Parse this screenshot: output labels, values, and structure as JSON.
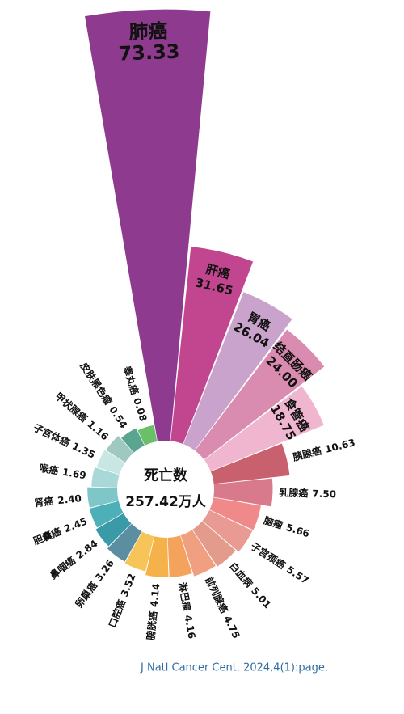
{
  "chart_data": {
    "type": "rose",
    "categories": [
      "肺癌",
      "肝癌",
      "胃癌",
      "结直肠癌",
      "食管癌",
      "胰腺癌",
      "乳腺癌",
      "脑瘤",
      "子宫颈癌",
      "白血病",
      "前列腺癌",
      "淋巴瘤",
      "膀胱癌",
      "口腔癌",
      "卵巢癌",
      "鼻咽癌",
      "胆囊癌",
      "肾癌",
      "喉癌",
      "子宫体癌",
      "甲状腺癌",
      "皮肤黑色瘤",
      "睾丸癌"
    ],
    "values": [
      73.33,
      31.65,
      26.04,
      24.0,
      18.75,
      10.63,
      7.5,
      5.66,
      5.57,
      5.01,
      4.75,
      4.16,
      4.14,
      3.52,
      3.26,
      2.84,
      2.45,
      2.4,
      1.69,
      1.35,
      1.16,
      0.54,
      0.08
    ],
    "value_labels": [
      "73.33",
      "31.65",
      "26.04",
      "24.00",
      "18.75",
      "10.63",
      "7.50",
      "5.66",
      "5.57",
      "5.01",
      "4.75",
      "4.16",
      "4.14",
      "3.52",
      "3.26",
      "2.84",
      "2.45",
      "2.40",
      "1.69",
      "1.35",
      "1.16",
      "0.54",
      "0.08"
    ],
    "colors": [
      "#8e3a8e",
      "#c2468f",
      "#c9a3cb",
      "#d98bb0",
      "#f0b6cf",
      "#c8606e",
      "#d97a8c",
      "#f08a8a",
      "#e89a93",
      "#e39b8c",
      "#f0a080",
      "#f5a25c",
      "#f6b24a",
      "#f7c45a",
      "#5a8ea0",
      "#3a9aa8",
      "#4db0b8",
      "#7ec6c8",
      "#a9d8d8",
      "#c8e6e4",
      "#9ec8c0",
      "#5aa590",
      "#6abf69"
    ],
    "center_label": "死亡数",
    "total": 257.42,
    "total_unit": "万人",
    "source": "J Natl Cancer Cent. 2024,4(1):page."
  }
}
